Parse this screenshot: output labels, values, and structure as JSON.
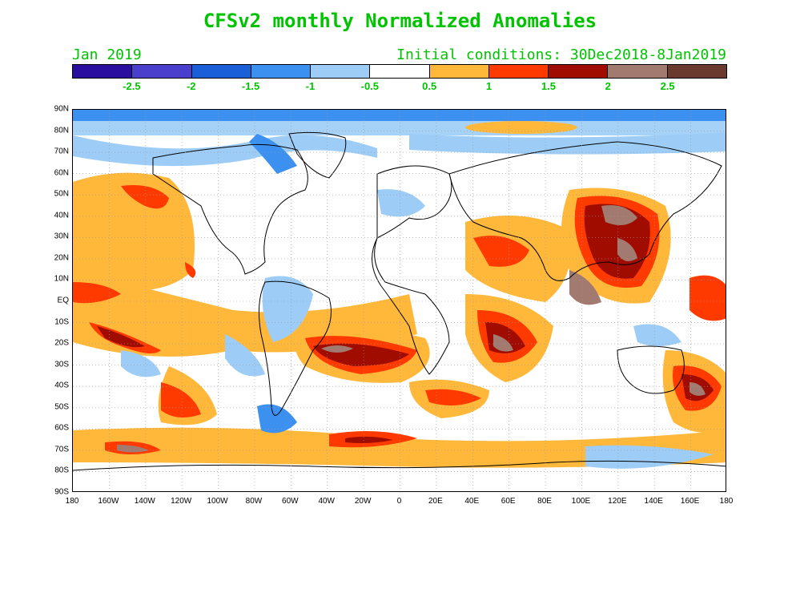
{
  "title": "CFSv2 monthly Normalized Anomalies",
  "month_label": "Jan 2019",
  "init_label": "Initial conditions: 30Dec2018-8Jan2019",
  "colorbar": {
    "colors": [
      "#2a0ea0",
      "#4a3fcc",
      "#1a5fd8",
      "#3b90f0",
      "#9dcdf7",
      "#ffffff",
      "#ffb83a",
      "#ff3a00",
      "#a00c00",
      "#a27a70",
      "#6b3a2f"
    ],
    "labels": [
      "-2.5",
      "-2",
      "-1.5",
      "-1",
      "-0.5",
      "0.5",
      "1",
      "1.5",
      "2",
      "2.5"
    ]
  },
  "lat_labels": [
    "90N",
    "80N",
    "70N",
    "60N",
    "50N",
    "40N",
    "30N",
    "20N",
    "10N",
    "EQ",
    "10S",
    "20S",
    "30S",
    "40S",
    "50S",
    "60S",
    "70S",
    "80S",
    "90S"
  ],
  "lon_labels": [
    "180",
    "160W",
    "140W",
    "120W",
    "100W",
    "80W",
    "60W",
    "40W",
    "20W",
    "0",
    "20E",
    "40E",
    "60E",
    "80E",
    "100E",
    "120E",
    "140E",
    "160E",
    "180"
  ]
}
